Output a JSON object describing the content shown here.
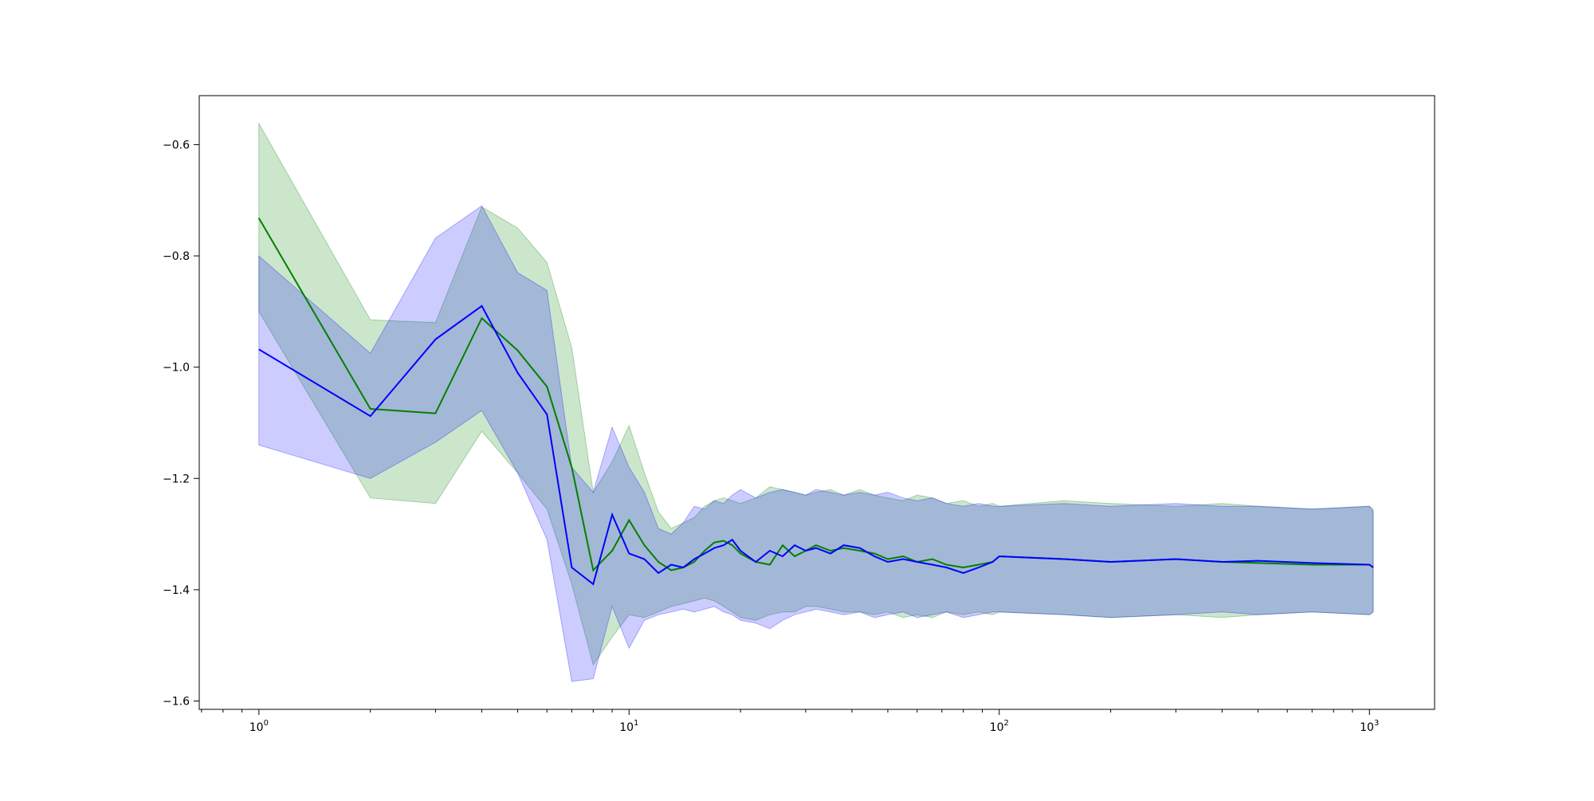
{
  "chart_data": {
    "type": "line",
    "title": "",
    "xlabel": "",
    "ylabel": "",
    "xscale": "log",
    "xlim": [
      0.69,
      1500
    ],
    "ylim": [
      -1.615,
      -0.512
    ],
    "grid": false,
    "legend": "none",
    "x_ticks": [
      {
        "value": 1,
        "base": "10",
        "exp": "0"
      },
      {
        "value": 10,
        "base": "10",
        "exp": "1"
      },
      {
        "value": 100,
        "base": "10",
        "exp": "2"
      },
      {
        "value": 1000,
        "base": "10",
        "exp": "3"
      }
    ],
    "y_ticks": [
      {
        "value": -0.6,
        "label": "−0.6"
      },
      {
        "value": -0.8,
        "label": "−0.8"
      },
      {
        "value": -1.0,
        "label": "−1.0"
      },
      {
        "value": -1.2,
        "label": "−1.2"
      },
      {
        "value": -1.4,
        "label": "−1.4"
      },
      {
        "value": -1.6,
        "label": "−1.6"
      }
    ],
    "series": [
      {
        "color": "#008000",
        "band_color": "#008000",
        "band_opacity": 0.2,
        "x": [
          1,
          2,
          3,
          4,
          5,
          6,
          7,
          8,
          9,
          10,
          11,
          12,
          13,
          14,
          15,
          16,
          17,
          18,
          19,
          20,
          22,
          24,
          26,
          28,
          30,
          32,
          35,
          38,
          42,
          46,
          50,
          55,
          60,
          66,
          72,
          80,
          88,
          96,
          100,
          150,
          200,
          300,
          400,
          500,
          700,
          1000,
          1024
        ],
        "y": [
          -0.732,
          -1.075,
          -1.083,
          -0.912,
          -0.97,
          -1.035,
          -1.18,
          -1.365,
          -1.33,
          -1.275,
          -1.32,
          -1.35,
          -1.365,
          -1.36,
          -1.35,
          -1.33,
          -1.315,
          -1.312,
          -1.32,
          -1.335,
          -1.35,
          -1.355,
          -1.32,
          -1.34,
          -1.33,
          -1.32,
          -1.33,
          -1.325,
          -1.33,
          -1.335,
          -1.345,
          -1.34,
          -1.35,
          -1.345,
          -1.355,
          -1.36,
          -1.355,
          -1.35,
          -1.34,
          -1.345,
          -1.35,
          -1.345,
          -1.35,
          -1.352,
          -1.355,
          -1.355,
          -1.36
        ],
        "upper": [
          -0.562,
          -0.915,
          -0.92,
          -0.712,
          -0.75,
          -0.812,
          -0.965,
          -1.225,
          -1.17,
          -1.105,
          -1.19,
          -1.26,
          -1.29,
          -1.28,
          -1.27,
          -1.25,
          -1.24,
          -1.235,
          -1.24,
          -1.245,
          -1.235,
          -1.215,
          -1.22,
          -1.225,
          -1.23,
          -1.225,
          -1.22,
          -1.23,
          -1.22,
          -1.23,
          -1.235,
          -1.24,
          -1.23,
          -1.235,
          -1.245,
          -1.24,
          -1.25,
          -1.245,
          -1.25,
          -1.24,
          -1.245,
          -1.25,
          -1.245,
          -1.25,
          -1.255,
          -1.25,
          -1.255
        ],
        "lower": [
          -0.9,
          -1.235,
          -1.245,
          -1.115,
          -1.19,
          -1.255,
          -1.39,
          -1.535,
          -1.485,
          -1.445,
          -1.45,
          -1.44,
          -1.43,
          -1.425,
          -1.42,
          -1.415,
          -1.42,
          -1.43,
          -1.44,
          -1.45,
          -1.455,
          -1.445,
          -1.44,
          -1.44,
          -1.43,
          -1.43,
          -1.435,
          -1.44,
          -1.44,
          -1.445,
          -1.44,
          -1.45,
          -1.445,
          -1.45,
          -1.44,
          -1.445,
          -1.44,
          -1.445,
          -1.44,
          -1.445,
          -1.45,
          -1.445,
          -1.45,
          -1.445,
          -1.44,
          -1.445,
          -1.44
        ]
      },
      {
        "color": "#0000ff",
        "band_color": "#0000ff",
        "band_opacity": 0.2,
        "x": [
          1,
          2,
          3,
          4,
          5,
          6,
          7,
          8,
          9,
          10,
          11,
          12,
          13,
          14,
          15,
          16,
          17,
          18,
          19,
          20,
          22,
          24,
          26,
          28,
          30,
          32,
          35,
          38,
          42,
          46,
          50,
          55,
          60,
          66,
          72,
          80,
          88,
          96,
          100,
          150,
          200,
          300,
          400,
          500,
          700,
          1000,
          1024
        ],
        "y": [
          -0.968,
          -1.088,
          -0.95,
          -0.89,
          -1.01,
          -1.085,
          -1.36,
          -1.39,
          -1.265,
          -1.335,
          -1.345,
          -1.37,
          -1.355,
          -1.36,
          -1.345,
          -1.335,
          -1.325,
          -1.32,
          -1.31,
          -1.33,
          -1.35,
          -1.33,
          -1.34,
          -1.32,
          -1.33,
          -1.325,
          -1.335,
          -1.32,
          -1.325,
          -1.34,
          -1.35,
          -1.345,
          -1.35,
          -1.355,
          -1.36,
          -1.37,
          -1.36,
          -1.35,
          -1.34,
          -1.345,
          -1.35,
          -1.345,
          -1.35,
          -1.348,
          -1.352,
          -1.355,
          -1.36
        ],
        "upper": [
          -0.8,
          -0.975,
          -0.768,
          -0.71,
          -0.83,
          -0.862,
          -1.18,
          -1.225,
          -1.108,
          -1.18,
          -1.225,
          -1.29,
          -1.3,
          -1.28,
          -1.25,
          -1.255,
          -1.24,
          -1.245,
          -1.23,
          -1.22,
          -1.235,
          -1.225,
          -1.22,
          -1.225,
          -1.23,
          -1.22,
          -1.225,
          -1.23,
          -1.225,
          -1.23,
          -1.225,
          -1.235,
          -1.24,
          -1.235,
          -1.245,
          -1.25,
          -1.245,
          -1.25,
          -1.25,
          -1.245,
          -1.25,
          -1.245,
          -1.25,
          -1.25,
          -1.255,
          -1.25,
          -1.26
        ],
        "lower": [
          -1.14,
          -1.2,
          -1.135,
          -1.078,
          -1.19,
          -1.31,
          -1.565,
          -1.56,
          -1.43,
          -1.505,
          -1.455,
          -1.445,
          -1.44,
          -1.435,
          -1.44,
          -1.435,
          -1.43,
          -1.44,
          -1.445,
          -1.455,
          -1.46,
          -1.47,
          -1.455,
          -1.445,
          -1.44,
          -1.435,
          -1.44,
          -1.445,
          -1.44,
          -1.45,
          -1.445,
          -1.44,
          -1.45,
          -1.445,
          -1.44,
          -1.45,
          -1.445,
          -1.44,
          -1.44,
          -1.445,
          -1.45,
          -1.445,
          -1.44,
          -1.445,
          -1.44,
          -1.445,
          -1.44
        ]
      }
    ]
  }
}
